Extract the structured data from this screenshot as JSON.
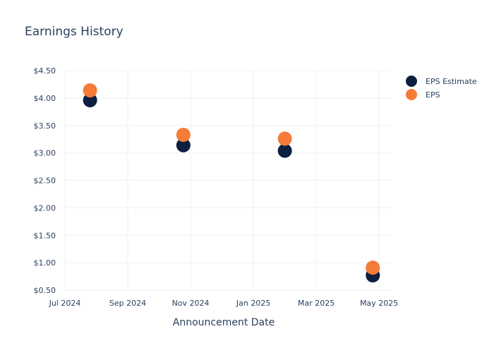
{
  "chart_data": {
    "type": "scatter",
    "title": "Earnings History",
    "xlabel": "Announcement Date",
    "ylabel": "",
    "x_tick_labels": [
      "Jul 2024",
      "Sep 2024",
      "Nov 2024",
      "Jan 2025",
      "Mar 2025",
      "May 2025"
    ],
    "y_tick_labels": [
      "$0.50",
      "$1.00",
      "$1.50",
      "$2.00",
      "$2.50",
      "$3.00",
      "$3.50",
      "$4.00",
      "$4.50"
    ],
    "y_ticks": [
      0.5,
      1.0,
      1.5,
      2.0,
      2.5,
      3.0,
      3.5,
      4.0,
      4.5
    ],
    "ylim": [
      0.5,
      4.5
    ],
    "x_tick_months": [
      0,
      2,
      4,
      6,
      8,
      10
    ],
    "x_month_range": [
      0,
      10.4
    ],
    "x": [
      "2024-07-25",
      "2024-10-24",
      "2025-01-31",
      "2025-04-24"
    ],
    "x_months": [
      0.8,
      3.77,
      7.0,
      9.8
    ],
    "series": [
      {
        "name": "EPS Estimate",
        "color": "#0c1f3f",
        "values": [
          3.96,
          3.14,
          3.04,
          0.77
        ]
      },
      {
        "name": "EPS",
        "color": "#f47b38",
        "values": [
          4.14,
          3.33,
          3.26,
          0.91
        ]
      }
    ],
    "legend": "top-right",
    "grid": true
  }
}
